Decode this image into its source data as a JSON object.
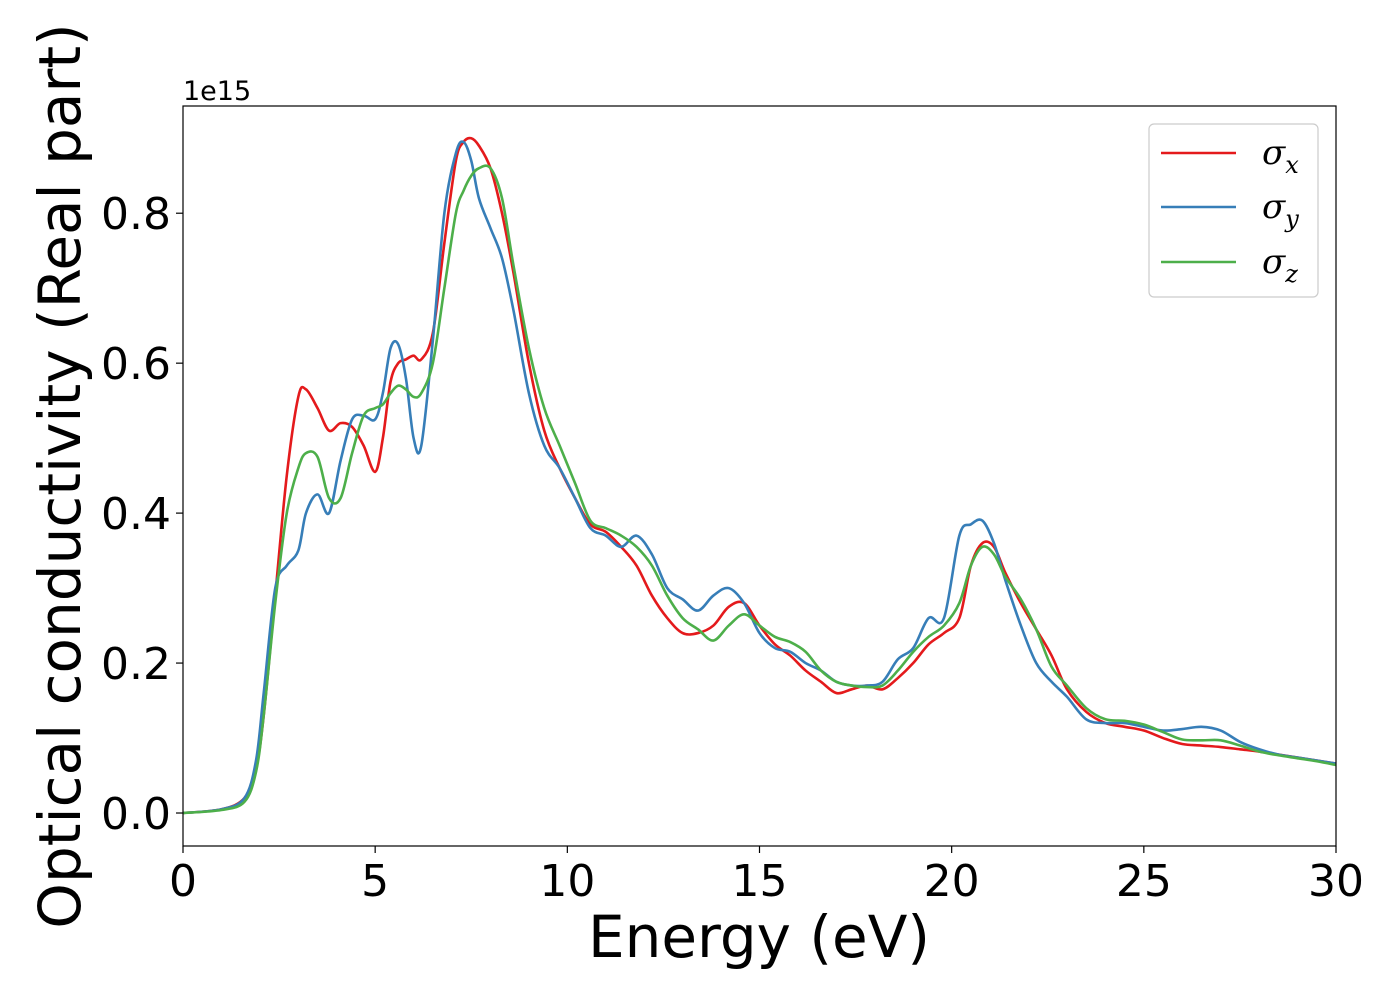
{
  "chart_data": {
    "type": "line",
    "xlabel": "Energy (eV)",
    "ylabel": "Optical conductivity (Real part)",
    "y_offset_text": "1e15",
    "y_scale": 1000000000000000.0,
    "xlim": [
      0,
      30
    ],
    "ylim": [
      -0.044,
      0.943
    ],
    "x_ticks": [
      0,
      5,
      10,
      15,
      20,
      25,
      30
    ],
    "x_tick_labels": [
      "0",
      "5",
      "10",
      "15",
      "20",
      "25",
      "30"
    ],
    "y_ticks": [
      0.0,
      0.2,
      0.4,
      0.6,
      0.8
    ],
    "y_tick_labels": [
      "0.0",
      "0.2",
      "0.4",
      "0.6",
      "0.8"
    ],
    "grid": false,
    "legend_position": "top-right",
    "series": [
      {
        "name": "σx",
        "symbol": "σ",
        "subscript": "x",
        "color": "#e41a1c",
        "x": [
          0,
          1,
          1.6,
          1.9,
          2.1,
          2.4,
          2.7,
          3.0,
          3.2,
          3.5,
          3.8,
          4.1,
          4.4,
          4.7,
          5.0,
          5.2,
          5.4,
          5.6,
          5.8,
          6.0,
          6.2,
          6.5,
          6.8,
          7.1,
          7.3,
          7.5,
          7.7,
          8.0,
          8.3,
          8.6,
          9.0,
          9.4,
          9.8,
          10.2,
          10.6,
          11.0,
          11.4,
          11.8,
          12.2,
          12.6,
          13.0,
          13.4,
          13.8,
          14.2,
          14.6,
          15.0,
          15.4,
          15.8,
          16.2,
          16.6,
          17.0,
          17.4,
          17.8,
          18.2,
          18.6,
          19.0,
          19.4,
          19.8,
          20.2,
          20.5,
          20.8,
          21.1,
          21.4,
          21.8,
          22.2,
          22.6,
          23.0,
          23.5,
          24.0,
          24.5,
          25.0,
          25.5,
          26.0,
          26.5,
          27.0,
          27.5,
          28.0,
          28.5,
          29.0,
          29.5,
          30.0
        ],
        "values": [
          0.0,
          0.005,
          0.02,
          0.06,
          0.13,
          0.29,
          0.45,
          0.555,
          0.565,
          0.54,
          0.51,
          0.52,
          0.515,
          0.49,
          0.455,
          0.5,
          0.575,
          0.6,
          0.605,
          0.61,
          0.605,
          0.64,
          0.76,
          0.87,
          0.895,
          0.9,
          0.89,
          0.86,
          0.8,
          0.72,
          0.6,
          0.51,
          0.46,
          0.42,
          0.385,
          0.375,
          0.355,
          0.33,
          0.29,
          0.26,
          0.24,
          0.24,
          0.25,
          0.275,
          0.28,
          0.25,
          0.225,
          0.21,
          0.19,
          0.175,
          0.16,
          0.165,
          0.17,
          0.165,
          0.18,
          0.2,
          0.225,
          0.24,
          0.26,
          0.33,
          0.36,
          0.355,
          0.32,
          0.28,
          0.245,
          0.21,
          0.165,
          0.135,
          0.12,
          0.115,
          0.11,
          0.1,
          0.092,
          0.09,
          0.088,
          0.085,
          0.082,
          0.078,
          0.074,
          0.07,
          0.066
        ]
      },
      {
        "name": "σy",
        "symbol": "σ",
        "subscript": "y",
        "color": "#377eb8",
        "x": [
          0,
          1,
          1.6,
          1.9,
          2.1,
          2.4,
          2.7,
          3.0,
          3.2,
          3.5,
          3.8,
          4.1,
          4.4,
          4.7,
          5.0,
          5.2,
          5.4,
          5.6,
          5.8,
          6.0,
          6.2,
          6.5,
          6.8,
          7.1,
          7.3,
          7.5,
          7.7,
          8.0,
          8.3,
          8.6,
          9.0,
          9.4,
          9.8,
          10.2,
          10.6,
          11.0,
          11.4,
          11.8,
          12.2,
          12.6,
          13.0,
          13.4,
          13.8,
          14.2,
          14.6,
          15.0,
          15.4,
          15.8,
          16.2,
          16.6,
          17.0,
          17.4,
          17.8,
          18.2,
          18.6,
          19.0,
          19.4,
          19.8,
          20.2,
          20.5,
          20.8,
          21.1,
          21.4,
          21.8,
          22.2,
          22.6,
          23.0,
          23.5,
          24.0,
          24.5,
          25.0,
          25.5,
          26.0,
          26.5,
          27.0,
          27.5,
          28.0,
          28.5,
          29.0,
          29.5,
          30.0
        ],
        "values": [
          0.0,
          0.005,
          0.02,
          0.07,
          0.16,
          0.3,
          0.33,
          0.35,
          0.4,
          0.425,
          0.4,
          0.47,
          0.525,
          0.53,
          0.525,
          0.56,
          0.62,
          0.625,
          0.58,
          0.5,
          0.49,
          0.63,
          0.8,
          0.88,
          0.895,
          0.87,
          0.82,
          0.78,
          0.74,
          0.67,
          0.56,
          0.49,
          0.46,
          0.42,
          0.38,
          0.37,
          0.355,
          0.37,
          0.345,
          0.3,
          0.285,
          0.27,
          0.29,
          0.3,
          0.28,
          0.24,
          0.22,
          0.215,
          0.2,
          0.19,
          0.175,
          0.17,
          0.17,
          0.175,
          0.205,
          0.22,
          0.26,
          0.26,
          0.37,
          0.385,
          0.39,
          0.36,
          0.31,
          0.25,
          0.2,
          0.175,
          0.155,
          0.125,
          0.12,
          0.12,
          0.115,
          0.11,
          0.112,
          0.115,
          0.11,
          0.095,
          0.085,
          0.078,
          0.074,
          0.07,
          0.066
        ]
      },
      {
        "name": "σz",
        "symbol": "σ",
        "subscript": "z",
        "color": "#4daf4a",
        "x": [
          0,
          1,
          1.6,
          1.9,
          2.1,
          2.4,
          2.7,
          3.0,
          3.2,
          3.5,
          3.8,
          4.1,
          4.4,
          4.7,
          5.0,
          5.2,
          5.4,
          5.6,
          5.8,
          6.0,
          6.2,
          6.5,
          6.8,
          7.1,
          7.3,
          7.5,
          7.7,
          8.0,
          8.3,
          8.6,
          9.0,
          9.4,
          9.8,
          10.2,
          10.6,
          11.0,
          11.4,
          11.8,
          12.2,
          12.6,
          13.0,
          13.4,
          13.8,
          14.2,
          14.6,
          15.0,
          15.4,
          15.8,
          16.2,
          16.6,
          17.0,
          17.4,
          17.8,
          18.2,
          18.6,
          19.0,
          19.4,
          19.8,
          20.2,
          20.5,
          20.8,
          21.1,
          21.4,
          21.8,
          22.2,
          22.6,
          23.0,
          23.5,
          24.0,
          24.5,
          25.0,
          25.5,
          26.0,
          26.5,
          27.0,
          27.5,
          28.0,
          28.5,
          29.0,
          29.5,
          30.0
        ],
        "values": [
          0.0,
          0.004,
          0.015,
          0.055,
          0.13,
          0.28,
          0.4,
          0.46,
          0.48,
          0.475,
          0.42,
          0.42,
          0.48,
          0.53,
          0.54,
          0.545,
          0.56,
          0.57,
          0.565,
          0.555,
          0.56,
          0.6,
          0.7,
          0.8,
          0.83,
          0.85,
          0.86,
          0.86,
          0.82,
          0.73,
          0.62,
          0.54,
          0.49,
          0.44,
          0.39,
          0.38,
          0.37,
          0.355,
          0.33,
          0.29,
          0.26,
          0.245,
          0.23,
          0.25,
          0.265,
          0.25,
          0.235,
          0.228,
          0.215,
          0.19,
          0.175,
          0.17,
          0.168,
          0.17,
          0.19,
          0.215,
          0.235,
          0.25,
          0.28,
          0.33,
          0.355,
          0.345,
          0.315,
          0.285,
          0.245,
          0.195,
          0.17,
          0.14,
          0.125,
          0.123,
          0.118,
          0.108,
          0.098,
          0.097,
          0.097,
          0.09,
          0.082,
          0.077,
          0.073,
          0.069,
          0.064
        ]
      }
    ]
  }
}
